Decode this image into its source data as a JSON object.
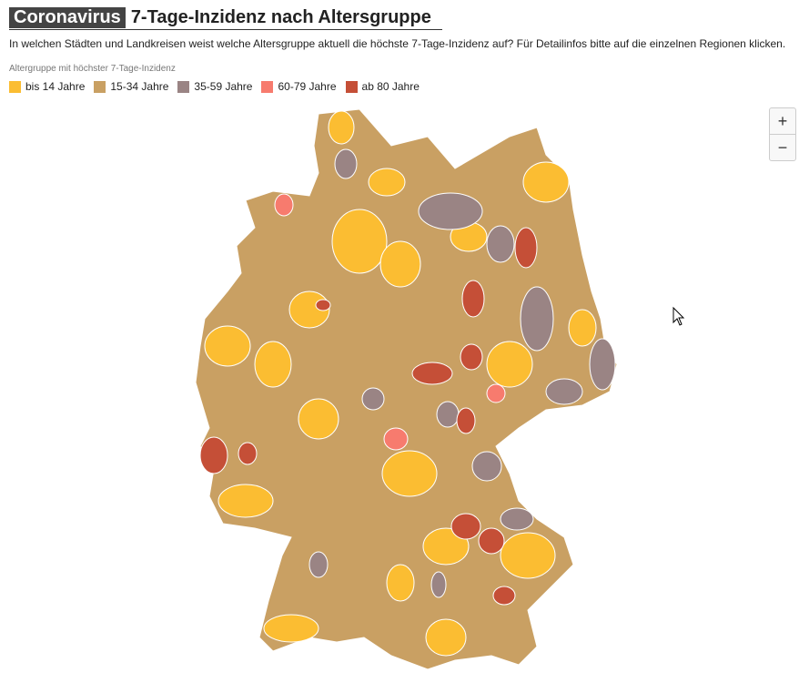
{
  "header": {
    "tag": "Coronavirus",
    "title": "7-Tage-Inzidenz nach Altersgruppe",
    "subtitle": "In welchen Städten und Landkreisen weist welche Altersgruppe aktuell die höchste 7-Tage-Inzidenz auf? Für Detailinfos bitte auf die einzelnen Regionen klicken."
  },
  "legend": {
    "title": "Altergruppe mit höchster 7-Tage-Inzidenz",
    "items": [
      {
        "label": "bis 14 Jahre",
        "color": "#fbbd32"
      },
      {
        "label": "15-34 Jahre",
        "color": "#c9a063"
      },
      {
        "label": "35-59 Jahre",
        "color": "#9a8484"
      },
      {
        "label": "60-79 Jahre",
        "color": "#f77b6e"
      },
      {
        "label": "ab 80 Jahre",
        "color": "#c54f37"
      }
    ]
  },
  "zoom": {
    "in": "+",
    "out": "−"
  }
}
